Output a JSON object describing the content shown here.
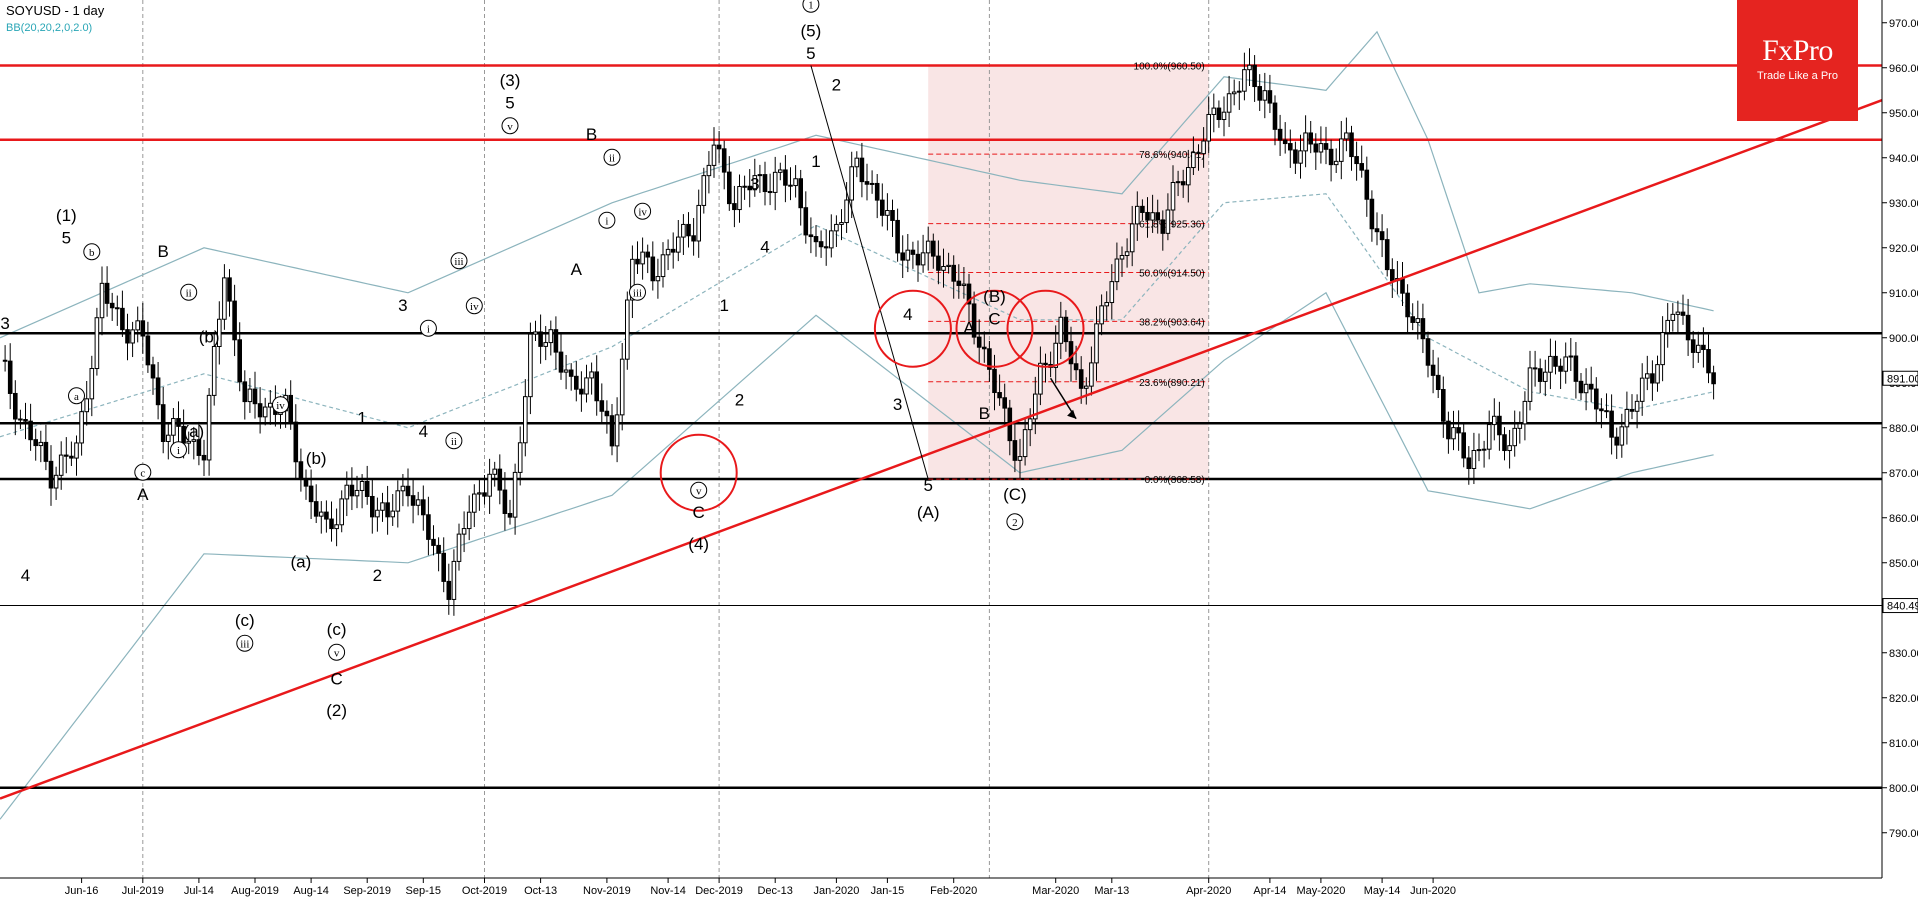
{
  "header": {
    "title": "SOYUSD - 1 day",
    "indicator": "BB(20,20,2,0,2.0)"
  },
  "logo": {
    "brand": "FxPro",
    "tagline": "Trade Like a Pro",
    "color": "#e52420"
  },
  "colors": {
    "red": "#e8191b",
    "band": "#8cb4bd",
    "candle": "#000000",
    "fib_zone": "#f7dcdc"
  },
  "chart_data": {
    "type": "candlestick",
    "symbol": "SOYUSD",
    "timeframe": "1 day",
    "ylim": [
      785,
      975
    ],
    "y_ticks": [
      790,
      800,
      810,
      820,
      830,
      840,
      850,
      860,
      870,
      880,
      890,
      900,
      910,
      920,
      930,
      940,
      950,
      960,
      970
    ],
    "x_ticks": [
      "Jun-16",
      "Jul-2019",
      "Jul-14",
      "Aug-2019",
      "Aug-14",
      "Sep-2019",
      "Sep-15",
      "Oct-2019",
      "Oct-13",
      "Nov-2019",
      "Nov-14",
      "Dec-2019",
      "Dec-13",
      "Jan-2020",
      "Jan-15",
      "Feb-2020",
      "Mar-2020",
      "Mar-13",
      "Apr-2020",
      "Apr-14",
      "May-2020",
      "May-14",
      "Jun-2020"
    ],
    "price_path": [
      [
        0,
        895
      ],
      [
        4,
        882
      ],
      [
        10,
        870
      ],
      [
        15,
        875
      ],
      [
        20,
        910
      ],
      [
        24,
        903
      ],
      [
        28,
        900
      ],
      [
        32,
        880
      ],
      [
        36,
        878
      ],
      [
        40,
        875
      ],
      [
        44,
        915
      ],
      [
        48,
        885
      ],
      [
        52,
        885
      ],
      [
        56,
        884
      ],
      [
        60,
        866
      ],
      [
        64,
        857
      ],
      [
        68,
        866
      ],
      [
        72,
        865
      ],
      [
        76,
        860
      ],
      [
        80,
        868
      ],
      [
        84,
        856
      ],
      [
        88,
        845
      ],
      [
        92,
        862
      ],
      [
        96,
        870
      ],
      [
        100,
        860
      ],
      [
        104,
        898
      ],
      [
        108,
        901
      ],
      [
        112,
        888
      ],
      [
        116,
        892
      ],
      [
        120,
        875
      ],
      [
        124,
        918
      ],
      [
        128,
        915
      ],
      [
        132,
        920
      ],
      [
        136,
        925
      ],
      [
        140,
        943
      ],
      [
        144,
        930
      ],
      [
        148,
        935
      ],
      [
        152,
        935
      ],
      [
        156,
        934
      ],
      [
        160,
        918
      ],
      [
        164,
        925
      ],
      [
        168,
        938
      ],
      [
        172,
        932
      ],
      [
        176,
        920
      ],
      [
        180,
        918
      ],
      [
        184,
        918
      ],
      [
        188,
        912
      ],
      [
        192,
        900
      ],
      [
        196,
        885
      ],
      [
        200,
        873
      ],
      [
        204,
        892
      ],
      [
        208,
        902
      ],
      [
        212,
        888
      ],
      [
        216,
        905
      ],
      [
        220,
        920
      ],
      [
        224,
        928
      ],
      [
        228,
        926
      ],
      [
        232,
        936
      ],
      [
        236,
        945
      ],
      [
        240,
        952
      ],
      [
        244,
        958
      ],
      [
        248,
        955
      ],
      [
        252,
        940
      ],
      [
        256,
        944
      ],
      [
        260,
        940
      ],
      [
        264,
        944
      ],
      [
        268,
        932
      ],
      [
        272,
        915
      ],
      [
        276,
        908
      ],
      [
        280,
        895
      ],
      [
        284,
        880
      ],
      [
        288,
        872
      ],
      [
        292,
        880
      ],
      [
        296,
        876
      ],
      [
        300,
        890
      ],
      [
        304,
        895
      ],
      [
        308,
        893
      ],
      [
        312,
        888
      ],
      [
        316,
        878
      ],
      [
        320,
        884
      ],
      [
        324,
        893
      ],
      [
        328,
        906
      ],
      [
        332,
        900
      ],
      [
        336,
        890
      ]
    ],
    "bollinger": {
      "upper": [
        [
          0,
          900
        ],
        [
          40,
          920
        ],
        [
          80,
          910
        ],
        [
          120,
          930
        ],
        [
          160,
          945
        ],
        [
          200,
          935
        ],
        [
          220,
          932
        ],
        [
          240,
          958
        ],
        [
          260,
          955
        ],
        [
          270,
          968
        ],
        [
          280,
          944
        ],
        [
          290,
          910
        ],
        [
          300,
          912
        ],
        [
          320,
          910
        ],
        [
          336,
          906
        ]
      ],
      "middle": [
        [
          0,
          878
        ],
        [
          40,
          892
        ],
        [
          80,
          880
        ],
        [
          120,
          898
        ],
        [
          160,
          925
        ],
        [
          200,
          904
        ],
        [
          220,
          904
        ],
        [
          240,
          930
        ],
        [
          260,
          932
        ],
        [
          280,
          900
        ],
        [
          300,
          888
        ],
        [
          320,
          884
        ],
        [
          336,
          888
        ]
      ],
      "lower": [
        [
          0,
          793
        ],
        [
          40,
          852
        ],
        [
          80,
          850
        ],
        [
          120,
          865
        ],
        [
          160,
          905
        ],
        [
          200,
          870
        ],
        [
          220,
          875
        ],
        [
          240,
          895
        ],
        [
          260,
          910
        ],
        [
          280,
          866
        ],
        [
          300,
          862
        ],
        [
          320,
          870
        ],
        [
          336,
          874
        ]
      ]
    },
    "horizontal_levels": [
      {
        "value": 960.5,
        "color": "#e8191b"
      },
      {
        "value": 944,
        "color": "#e8191b"
      },
      {
        "value": 901,
        "color": "#000000"
      },
      {
        "value": 881,
        "color": "#000000"
      },
      {
        "value": 868.6,
        "color": "#000000"
      },
      {
        "value": 800,
        "color": "#000000"
      }
    ],
    "trendline": {
      "color": "#e8191b",
      "from": [
        0,
        797.6
      ],
      "to": [
        370,
        953.2
      ]
    },
    "fibonacci": [
      {
        "label": "100.0%(960.50)",
        "value": 960.5
      },
      {
        "label": "78.6%(940.81)",
        "value": 940.81
      },
      {
        "label": "61.8%(925.36)",
        "value": 925.36
      },
      {
        "label": "50.0%(914.50)",
        "value": 914.5
      },
      {
        "label": "38.2%(903.64)",
        "value": 903.64
      },
      {
        "label": "23.6%(890.21)",
        "value": 890.21
      },
      {
        "label": "0.0%(868.58)",
        "value": 868.58
      }
    ],
    "price_labels": [
      {
        "text": "891.00",
        "value": 891
      },
      {
        "text": "840.49",
        "value": 840.49
      }
    ],
    "wave_labels": [
      {
        "text": "3",
        "x": 1,
        "y": 902
      },
      {
        "text": "4",
        "x": 5,
        "y": 846
      },
      {
        "text": "(1)",
        "x": 13,
        "y": 926
      },
      {
        "text": "5",
        "x": 13,
        "y": 921
      },
      {
        "text": "b",
        "x": 18,
        "y": 918,
        "circle": true
      },
      {
        "text": "a",
        "x": 15,
        "y": 886,
        "circle": true
      },
      {
        "text": "A",
        "x": 28,
        "y": 864
      },
      {
        "text": "c",
        "x": 28,
        "y": 869,
        "circle": true
      },
      {
        "text": "B",
        "x": 32,
        "y": 918
      },
      {
        "text": "ii",
        "x": 37,
        "y": 909,
        "circle": true
      },
      {
        "text": "(b)",
        "x": 41,
        "y": 899
      },
      {
        "text": "i",
        "x": 35,
        "y": 874,
        "circle": true
      },
      {
        "text": "(a)",
        "x": 38,
        "y": 878
      },
      {
        "text": "iv",
        "x": 55,
        "y": 884,
        "circle": true
      },
      {
        "text": "(c)",
        "x": 48,
        "y": 836
      },
      {
        "text": "iii",
        "x": 48,
        "y": 831,
        "circle": true
      },
      {
        "text": "(b)",
        "x": 62,
        "y": 872
      },
      {
        "text": "(a)",
        "x": 59,
        "y": 849
      },
      {
        "text": "(c)",
        "x": 66,
        "y": 834
      },
      {
        "text": "v",
        "x": 66,
        "y": 829,
        "circle": true
      },
      {
        "text": "C",
        "x": 66,
        "y": 823
      },
      {
        "text": "(2)",
        "x": 66,
        "y": 816
      },
      {
        "text": "1",
        "x": 71,
        "y": 881
      },
      {
        "text": "2",
        "x": 74,
        "y": 846
      },
      {
        "text": "3",
        "x": 79,
        "y": 906
      },
      {
        "text": "4",
        "x": 83,
        "y": 878
      },
      {
        "text": "i",
        "x": 84,
        "y": 901,
        "circle": true
      },
      {
        "text": "ii",
        "x": 89,
        "y": 876,
        "circle": true
      },
      {
        "text": "iii",
        "x": 90,
        "y": 916,
        "circle": true
      },
      {
        "text": "iv",
        "x": 93,
        "y": 906,
        "circle": true
      },
      {
        "text": "(3)",
        "x": 100,
        "y": 956
      },
      {
        "text": "5",
        "x": 100,
        "y": 951
      },
      {
        "text": "v",
        "x": 100,
        "y": 946,
        "circle": true
      },
      {
        "text": "B",
        "x": 116,
        "y": 944
      },
      {
        "text": "ii",
        "x": 120,
        "y": 939,
        "circle": true
      },
      {
        "text": "A",
        "x": 113,
        "y": 914
      },
      {
        "text": "i",
        "x": 119,
        "y": 925,
        "circle": true
      },
      {
        "text": "iv",
        "x": 126,
        "y": 927,
        "circle": true
      },
      {
        "text": "iii",
        "x": 125,
        "y": 909,
        "circle": true
      },
      {
        "text": "1",
        "x": 142,
        "y": 906
      },
      {
        "text": "2",
        "x": 145,
        "y": 885
      },
      {
        "text": "v",
        "x": 137,
        "y": 865,
        "circle": true
      },
      {
        "text": "C",
        "x": 137,
        "y": 860
      },
      {
        "text": "(4)",
        "x": 137,
        "y": 853
      },
      {
        "text": "3",
        "x": 148,
        "y": 933
      },
      {
        "text": "4",
        "x": 150,
        "y": 919
      },
      {
        "text": "1",
        "x": 159,
        "y": 973,
        "circle": true
      },
      {
        "text": "(5)",
        "x": 159,
        "y": 967
      },
      {
        "text": "5",
        "x": 159,
        "y": 962
      },
      {
        "text": "1",
        "x": 160,
        "y": 938
      },
      {
        "text": "2",
        "x": 164,
        "y": 955
      },
      {
        "text": "4",
        "x": 178,
        "y": 904
      },
      {
        "text": "3",
        "x": 176,
        "y": 884
      },
      {
        "text": "5",
        "x": 182,
        "y": 866
      },
      {
        "text": "(A)",
        "x": 182,
        "y": 860
      },
      {
        "text": "A",
        "x": 190,
        "y": 901
      },
      {
        "text": "(B)",
        "x": 195,
        "y": 908
      },
      {
        "text": "C",
        "x": 195,
        "y": 903
      },
      {
        "text": "B",
        "x": 193,
        "y": 882
      },
      {
        "text": "(C)",
        "x": 199,
        "y": 864
      },
      {
        "text": "2",
        "x": 199,
        "y": 858,
        "circle": true
      }
    ],
    "highlight_circles": [
      {
        "x": 137,
        "y": 870
      },
      {
        "x": 179,
        "y": 902
      },
      {
        "x": 195,
        "y": 902
      },
      {
        "x": 205,
        "y": 902
      }
    ],
    "projection_arrow": {
      "from": [
        206,
        891
      ],
      "to": [
        211,
        882
      ]
    }
  }
}
